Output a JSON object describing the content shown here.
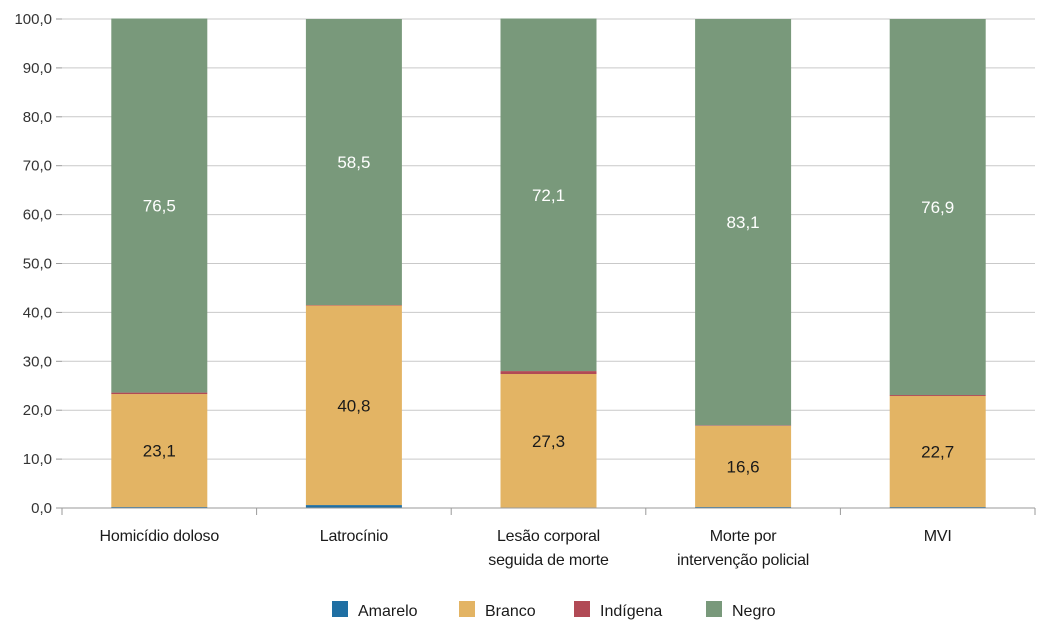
{
  "chart_data": {
    "type": "bar",
    "stacked": true,
    "categories": [
      [
        "Homicídio doloso"
      ],
      [
        "Latrocínio"
      ],
      [
        "Lesão corporal",
        "seguida de morte"
      ],
      [
        "Morte por",
        "intervenção policial"
      ],
      [
        "MVI"
      ]
    ],
    "series": [
      {
        "name": "Amarelo",
        "color": "#1f6fa3",
        "values": [
          0.2,
          0.6,
          0.1,
          0.2,
          0.2
        ]
      },
      {
        "name": "Branco",
        "color": "#e3b464",
        "values": [
          23.1,
          40.8,
          27.3,
          16.6,
          22.7
        ]
      },
      {
        "name": "Indígena",
        "color": "#b14a55",
        "values": [
          0.3,
          0.1,
          0.6,
          0.1,
          0.2
        ]
      },
      {
        "name": "Negro",
        "color": "#79997b",
        "values": [
          76.5,
          58.5,
          72.1,
          83.1,
          76.9
        ]
      }
    ],
    "data_labels": {
      "Branco": [
        "23,1",
        "40,8",
        "27,3",
        "16,6",
        "22,7"
      ],
      "Negro": [
        "76,5",
        "58,5",
        "72,1",
        "83,1",
        "76,9"
      ]
    },
    "ylim": [
      0,
      100
    ],
    "yticks": [
      "0,0",
      "10,0",
      "20,0",
      "30,0",
      "40,0",
      "50,0",
      "60,0",
      "70,0",
      "80,0",
      "90,0",
      "100,0"
    ],
    "grid": true,
    "legend_position": "bottom",
    "title": "",
    "xlabel": "",
    "ylabel": ""
  }
}
